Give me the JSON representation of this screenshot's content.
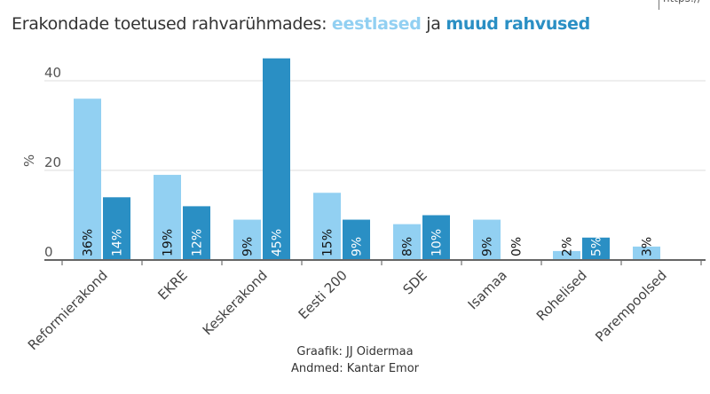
{
  "url_fragment": "https://",
  "title": {
    "prefix": "Erakondade toetused rahvarühmades: ",
    "series1": "eestlased",
    "mid": " ja ",
    "series2": "muud rahvused"
  },
  "credits": {
    "author": "Graafik: JJ Oidermaa",
    "source": "Andmed: Kantar Emor"
  },
  "chart_data": {
    "type": "bar",
    "ylabel": "%",
    "ylim": [
      0,
      45
    ],
    "yticks": [
      0,
      20,
      40
    ],
    "grid": true,
    "categories": [
      "Reformierakond",
      "EKRE",
      "Keskerakond",
      "Eesti 200",
      "SDE",
      "Isamaa",
      "Rohelised",
      "Parempoolsed"
    ],
    "series": [
      {
        "name": "eestlased",
        "color": "#92d0f2",
        "values": [
          36,
          19,
          9,
          15,
          8,
          9,
          2,
          3
        ]
      },
      {
        "name": "muud rahvused",
        "color": "#2a8fc4",
        "values": [
          14,
          12,
          45,
          9,
          10,
          0,
          5,
          null
        ]
      }
    ]
  }
}
